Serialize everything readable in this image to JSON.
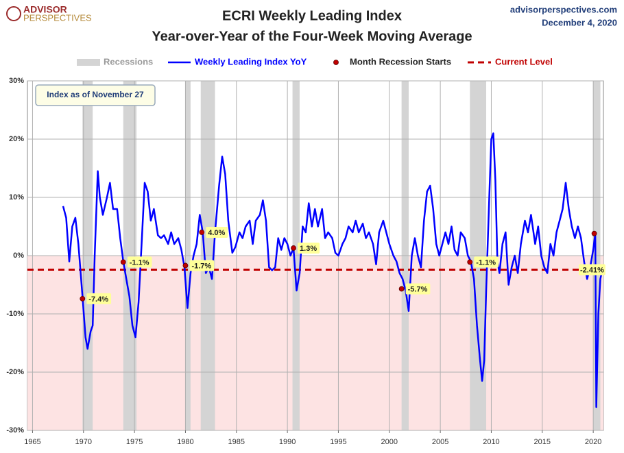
{
  "chart_data": {
    "type": "line",
    "title": "ECRI Weekly Leading Index",
    "subtitle": "Year-over-Year of the Four-Week Moving Average",
    "logo": [
      "ADVISOR",
      "PERSPECTIVES"
    ],
    "source": "advisorperspectives.com",
    "date": "December 4, 2020",
    "annotation": "Index as of November 27",
    "xlim": [
      1964.5,
      2021
    ],
    "xticks": [
      1965,
      1970,
      1975,
      1980,
      1985,
      1990,
      1995,
      2000,
      2005,
      2010,
      2015,
      2020
    ],
    "ylim": [
      -30,
      30
    ],
    "yticks": [
      {
        "value": -30,
        "label": "-30%"
      },
      {
        "value": -20,
        "label": "-20%"
      },
      {
        "value": -10,
        "label": "-10%"
      },
      {
        "value": 0,
        "label": "0%"
      },
      {
        "value": 10,
        "label": "10%"
      },
      {
        "value": 20,
        "label": "20%"
      },
      {
        "value": 30,
        "label": "30%"
      }
    ],
    "grid": true,
    "recessions": {
      "name": "Recessions",
      "color": "#d4d4d4",
      "starts": [
        1969.9,
        1973.9,
        1980.0,
        1981.5,
        1990.5,
        2001.2,
        2007.9,
        2020.0
      ],
      "ends": [
        1970.9,
        1975.2,
        1980.5,
        1982.9,
        1991.2,
        2001.9,
        2009.5,
        2020.7
      ]
    },
    "series": [
      {
        "name": "Weekly Leading Index YoY",
        "color": "#0000ff",
        "x": [
          1968.0,
          1968.3,
          1968.6,
          1968.9,
          1969.2,
          1969.5,
          1969.9,
          1970.2,
          1970.4,
          1970.7,
          1970.9,
          1971.1,
          1971.4,
          1971.6,
          1971.9,
          1972.3,
          1972.6,
          1972.9,
          1973.3,
          1973.6,
          1973.9,
          1974.2,
          1974.5,
          1974.8,
          1975.1,
          1975.4,
          1975.7,
          1976.0,
          1976.3,
          1976.6,
          1976.9,
          1977.3,
          1977.6,
          1977.9,
          1978.3,
          1978.6,
          1978.9,
          1979.3,
          1979.6,
          1979.9,
          1980.2,
          1980.5,
          1980.8,
          1981.1,
          1981.4,
          1981.7,
          1982.0,
          1982.3,
          1982.6,
          1982.9,
          1983.3,
          1983.6,
          1983.9,
          1984.2,
          1984.6,
          1984.9,
          1985.3,
          1985.6,
          1985.9,
          1986.3,
          1986.6,
          1986.9,
          1987.3,
          1987.6,
          1987.9,
          1988.2,
          1988.5,
          1988.8,
          1989.1,
          1989.4,
          1989.7,
          1990.0,
          1990.3,
          1990.6,
          1990.9,
          1991.2,
          1991.5,
          1991.8,
          1992.1,
          1992.4,
          1992.7,
          1993.0,
          1993.4,
          1993.7,
          1994.0,
          1994.4,
          1994.7,
          1995.0,
          1995.4,
          1995.7,
          1996.0,
          1996.4,
          1996.7,
          1997.0,
          1997.4,
          1997.7,
          1998.0,
          1998.4,
          1998.7,
          1999.0,
          1999.4,
          1999.7,
          2000.0,
          2000.4,
          2000.7,
          2001.0,
          2001.3,
          2001.6,
          2001.9,
          2002.2,
          2002.5,
          2002.8,
          2003.1,
          2003.4,
          2003.7,
          2004.0,
          2004.3,
          2004.6,
          2004.9,
          2005.2,
          2005.5,
          2005.8,
          2006.1,
          2006.4,
          2006.7,
          2007.0,
          2007.4,
          2007.7,
          2008.0,
          2008.3,
          2008.6,
          2008.9,
          2009.1,
          2009.3,
          2009.5,
          2009.8,
          2010.0,
          2010.2,
          2010.4,
          2010.6,
          2010.8,
          2011.1,
          2011.4,
          2011.7,
          2012.0,
          2012.3,
          2012.6,
          2012.9,
          2013.3,
          2013.6,
          2013.9,
          2014.3,
          2014.6,
          2014.9,
          2015.2,
          2015.5,
          2015.8,
          2016.1,
          2016.4,
          2016.7,
          2017.0,
          2017.3,
          2017.6,
          2017.9,
          2018.2,
          2018.5,
          2018.8,
          2019.1,
          2019.4,
          2019.7,
          2020.0,
          2020.2,
          2020.3,
          2020.5,
          2020.7,
          2020.9
        ],
        "values": [
          8.5,
          6.5,
          -1,
          5,
          6.5,
          2,
          -7,
          -14,
          -16,
          -13,
          -12,
          0,
          14.5,
          10,
          7,
          10,
          12.5,
          8,
          8,
          3,
          -1,
          -4,
          -7,
          -12,
          -14,
          -8,
          2,
          12.5,
          11,
          6,
          8,
          3.5,
          3,
          3.5,
          2,
          4,
          2,
          3,
          1,
          -2,
          -9,
          -3,
          0,
          2,
          7,
          4,
          -3,
          -2,
          -4,
          4,
          12,
          17,
          14,
          6,
          0.5,
          1.5,
          4,
          3,
          5,
          6,
          2,
          6,
          7,
          9.5,
          6,
          -2,
          -2.5,
          -2,
          3,
          1,
          3,
          2,
          0,
          1.3,
          -6,
          -3,
          5,
          4,
          9,
          5,
          8,
          5,
          8,
          3,
          4,
          3,
          0.5,
          0,
          2,
          3,
          5,
          4,
          6,
          4,
          5.5,
          3,
          4,
          2,
          -1.5,
          4,
          6,
          4,
          2,
          0,
          -1,
          -3,
          -4,
          -6,
          -9.5,
          0,
          3,
          0,
          -2,
          6,
          11,
          12,
          8,
          2,
          0,
          2,
          4,
          2,
          5,
          1,
          0,
          4,
          3,
          0,
          -1,
          -4,
          -12,
          -18,
          -21.5,
          -18,
          -6,
          10,
          20,
          21,
          13,
          -1,
          -3,
          2,
          4,
          -5,
          -2,
          0,
          -3,
          2,
          6,
          4,
          7,
          2,
          5,
          0,
          -2,
          -3,
          2,
          0,
          4,
          6,
          8,
          12.5,
          8,
          5,
          3,
          5,
          3,
          -1,
          -4,
          -2,
          1,
          3.8,
          -26,
          -10,
          -4,
          -2.4
        ]
      }
    ],
    "recession_starts": {
      "name": "Month Recession Starts",
      "color": "#c00000",
      "x": [
        1969.9,
        1973.9,
        1980.0,
        1981.6,
        1990.6,
        2001.2,
        2007.9,
        2020.1
      ],
      "values": [
        -7.4,
        -1.1,
        -1.7,
        4.0,
        1.3,
        -5.7,
        -1.1,
        3.8
      ],
      "value_labels": [
        "-7.4%",
        "-1.1%",
        "-1.7%",
        "4.0%",
        "1.3%",
        "-5.7%",
        "-1.1%",
        null
      ]
    },
    "current_level": {
      "name": "Current Level",
      "color": "#c00000",
      "value": -2.41,
      "label": "-2.41%"
    }
  }
}
